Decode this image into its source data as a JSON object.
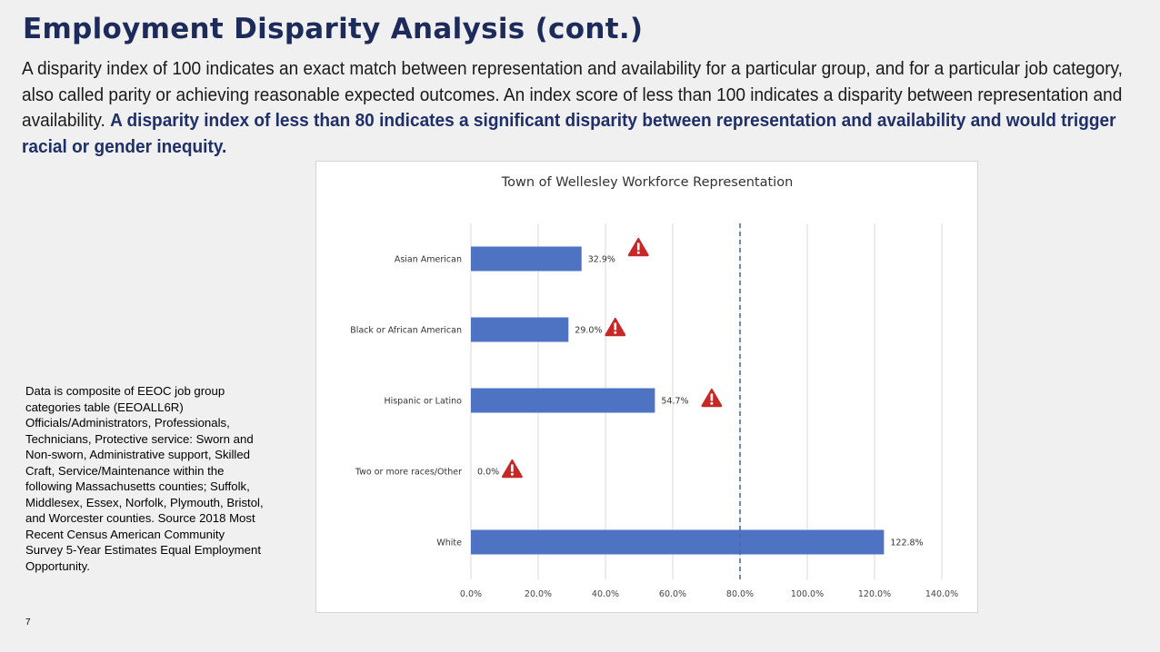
{
  "slide": {
    "title": "Employment Disparity Analysis (cont.)",
    "intro_plain": "A disparity index of 100 indicates an exact match between representation and availability for a particular group, and for a particular job category, also called parity or achieving reasonable expected outcomes. An index score of less than 100 indicates a disparity between representation and availability.",
    "intro_emphasis": "A disparity index of less than 80 indicates a significant disparity between representation and availability and would trigger racial or gender inequity.",
    "note": "Data is composite of EEOC job group categories table (EEOALL6R) Officials/Administrators, Professionals, Technicians, Protective service: Sworn and Non-sworn, Administrative support, Skilled Craft, Service/Maintenance within the following Massachusetts counties; Suffolk, Middlesex, Essex, Norfolk, Plymouth, Bristol, and Worcester counties. Source 2018 Most Recent Census American Community Survey 5-Year Estimates Equal Employment Opportunity.",
    "page_number": "7"
  },
  "chart_data": {
    "type": "bar",
    "orientation": "horizontal",
    "title": "Town of Wellesley Workforce Representation",
    "categories": [
      "Asian American",
      "Black or African American",
      "Hispanic or Latino",
      "Two or more races/Other",
      "White"
    ],
    "values": [
      32.9,
      29.0,
      54.7,
      0.0,
      122.8
    ],
    "value_labels": [
      "32.9%",
      "29.0%",
      "54.7%",
      "0.0%",
      "122.8%"
    ],
    "warning_flags": [
      true,
      true,
      true,
      true,
      false
    ],
    "x_ticks": [
      0,
      20,
      40,
      60,
      80,
      100,
      120,
      140
    ],
    "x_tick_labels": [
      "0.0%",
      "20.0%",
      "40.0%",
      "60.0%",
      "80.0%",
      "100.0%",
      "120.0%",
      "140.0%"
    ],
    "xlim": [
      0,
      140
    ],
    "threshold": 80,
    "xlabel": "",
    "ylabel": "",
    "grid": true,
    "bar_color": "#4f73c3",
    "warning_color": "#c62828",
    "threshold_color": "#4a68ad"
  }
}
